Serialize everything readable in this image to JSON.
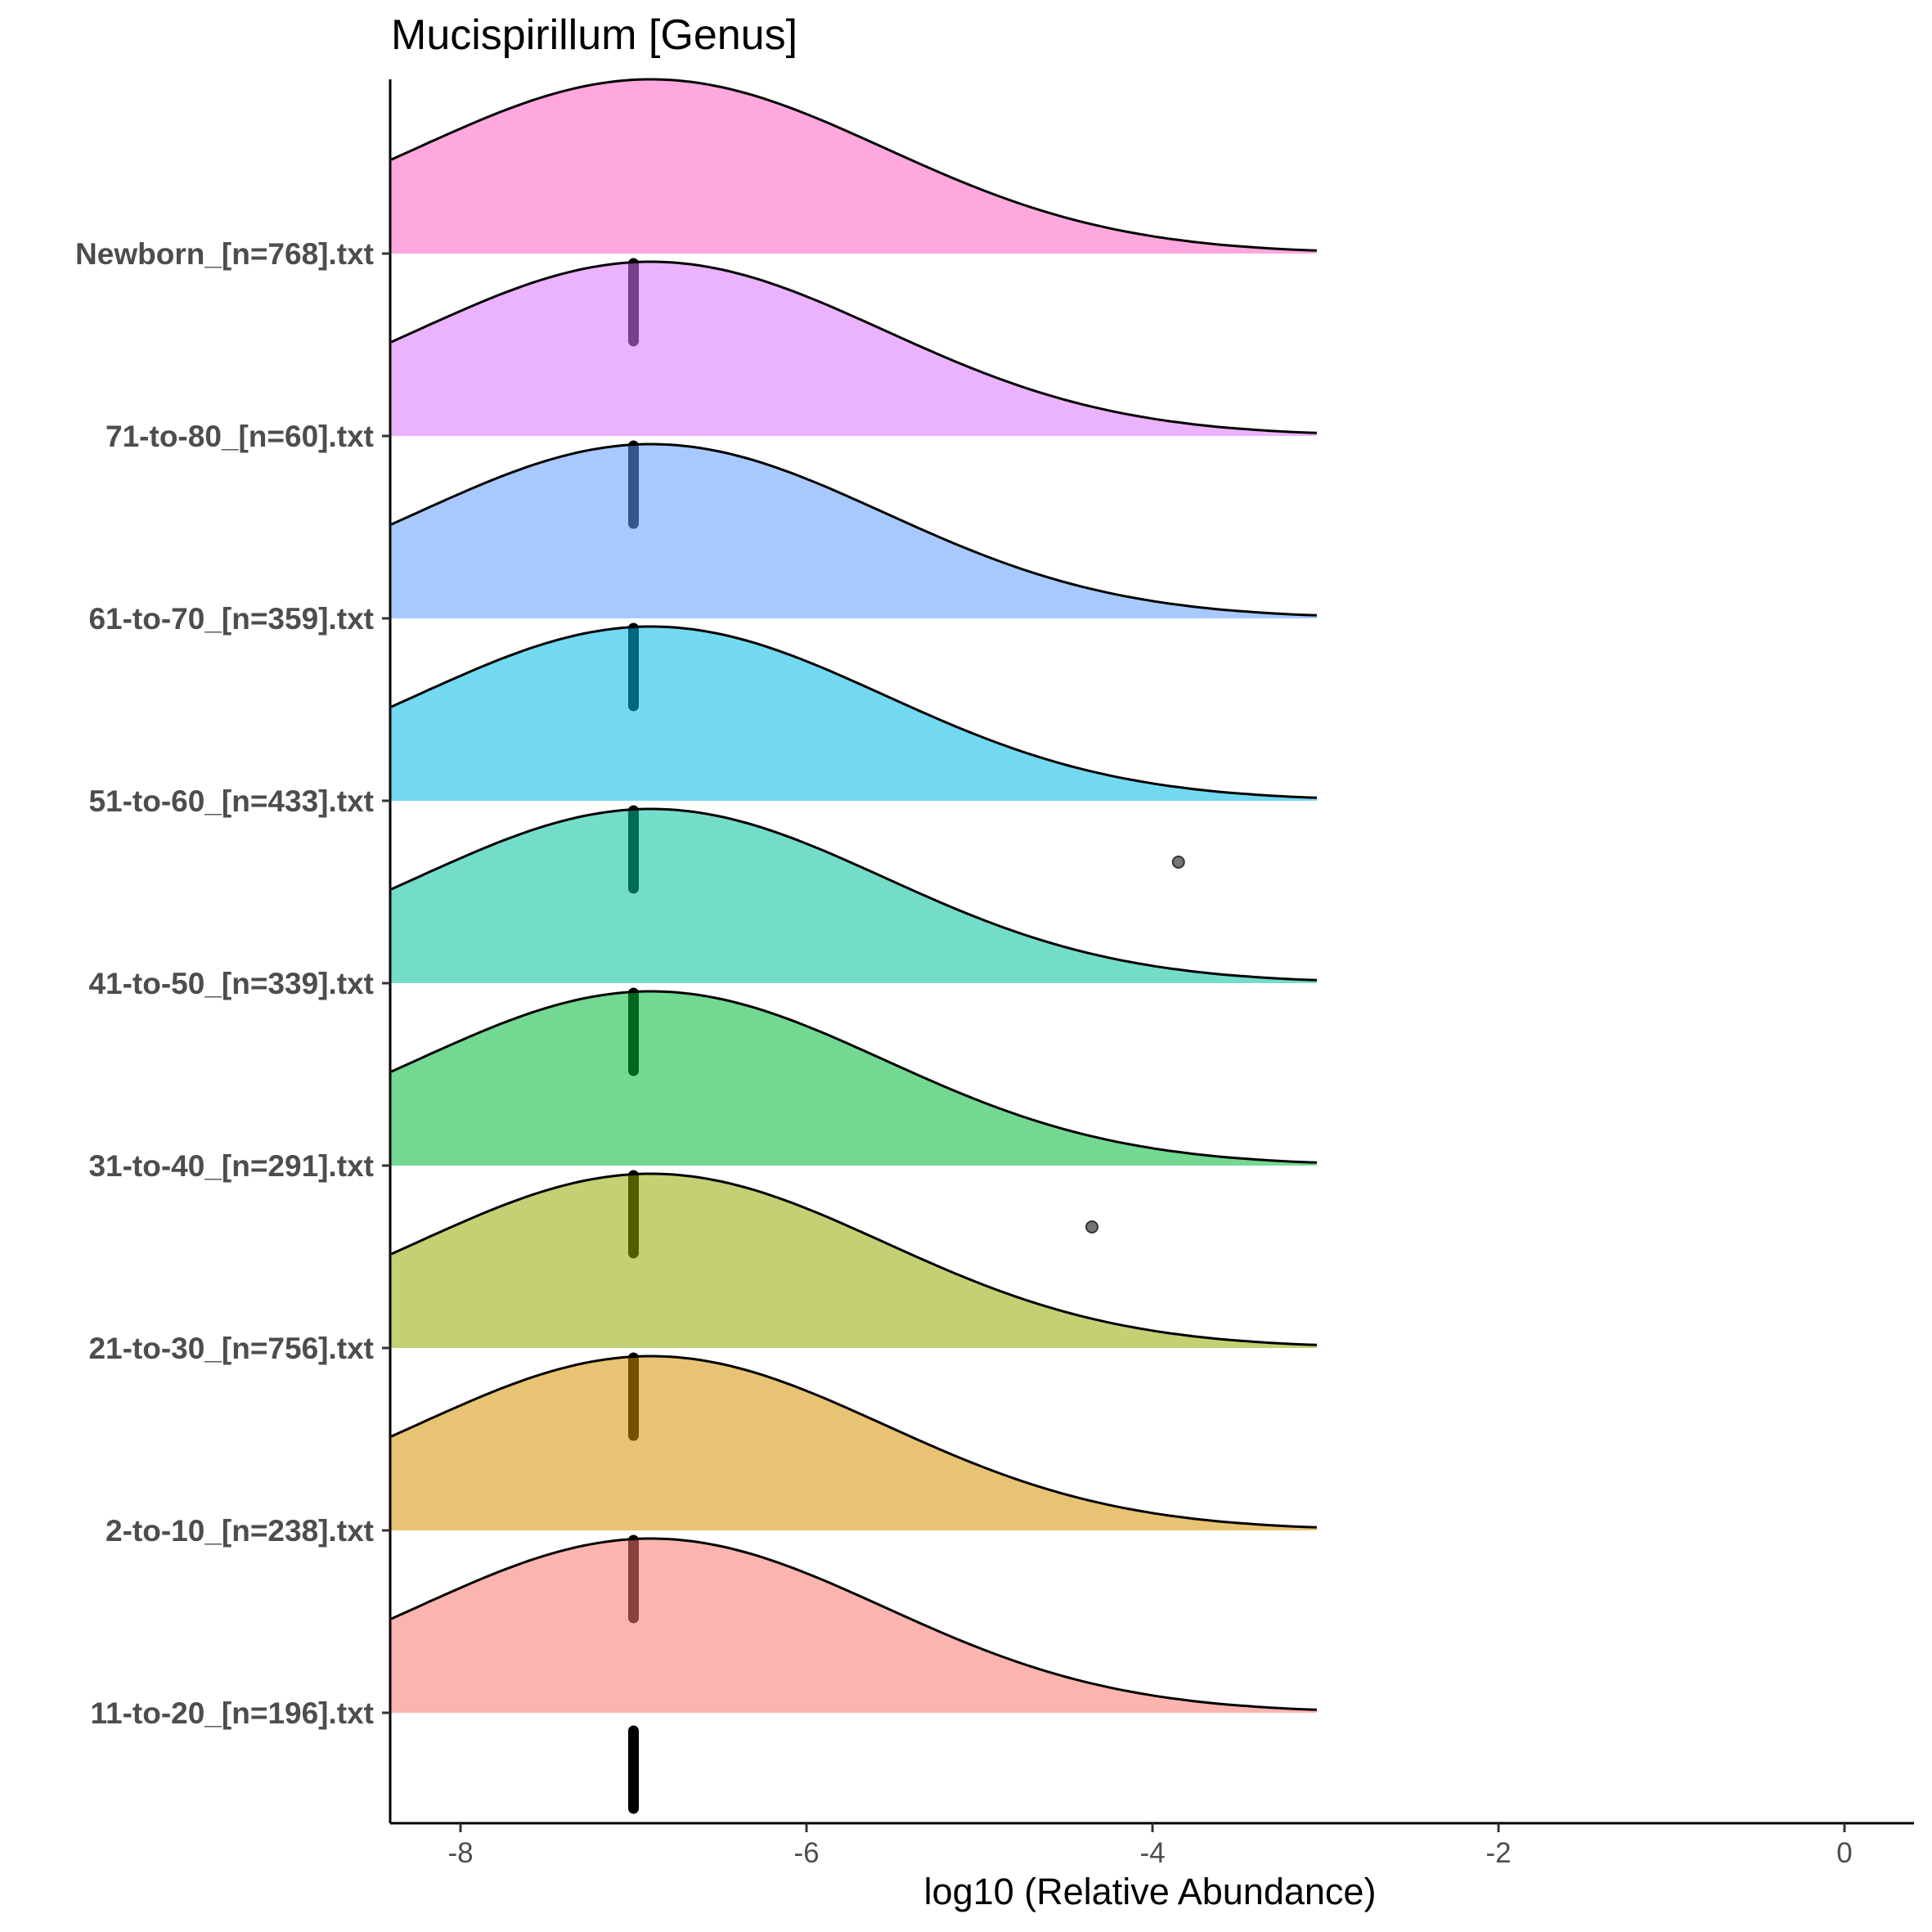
{
  "chart_data": {
    "type": "ridgeline",
    "title": "Mucispirillum [Genus]",
    "xlabel": "log10 (Relative Abundance)",
    "ylabel": "",
    "xlim": [
      -8.4,
      0.4
    ],
    "x_ticks": [
      -8,
      -6,
      -4,
      -2,
      0
    ],
    "x_tick_labels": [
      "-8",
      "-6",
      "-4",
      "-2",
      "0"
    ],
    "density_range": [
      -8.4,
      -3.05
    ],
    "categories": [
      "11-to-20_[n=196].txt",
      "2-to-10_[n=238].txt",
      "21-to-30_[n=756].txt",
      "31-to-40_[n=291].txt",
      "41-to-50_[n=339].txt",
      "51-to-60_[n=433].txt",
      "61-to-70_[n=359].txt",
      "71-to-80_[n=60].txt",
      "Newborn_[n=768].txt"
    ],
    "series": [
      {
        "name": "11-to-20_[n=196].txt",
        "color": "#F8766D",
        "density_peak_x": -6.9,
        "density_sd": 1.35,
        "median": -7.0,
        "outliers": []
      },
      {
        "name": "2-to-10_[n=238].txt",
        "color": "#D39200",
        "density_peak_x": -6.9,
        "density_sd": 1.35,
        "median": -7.0,
        "outliers": []
      },
      {
        "name": "21-to-30_[n=756].txt",
        "color": "#93AA00",
        "density_peak_x": -6.9,
        "density_sd": 1.35,
        "median": -7.0,
        "outliers": [
          -4.35
        ]
      },
      {
        "name": "31-to-40_[n=291].txt",
        "color": "#00BA38",
        "density_peak_x": -6.9,
        "density_sd": 1.35,
        "median": -7.0,
        "outliers": []
      },
      {
        "name": "41-to-50_[n=339].txt",
        "color": "#00C19F",
        "density_peak_x": -6.9,
        "density_sd": 1.35,
        "median": -7.0,
        "outliers": [
          -3.85
        ]
      },
      {
        "name": "51-to-60_[n=433].txt",
        "color": "#00B9E3",
        "density_peak_x": -6.9,
        "density_sd": 1.35,
        "median": -7.0,
        "outliers": []
      },
      {
        "name": "61-to-70_[n=359].txt",
        "color": "#619CFF",
        "density_peak_x": -6.9,
        "density_sd": 1.35,
        "median": -7.0,
        "outliers": []
      },
      {
        "name": "71-to-80_[n=60].txt",
        "color": "#DB72FB",
        "density_peak_x": -6.9,
        "density_sd": 1.35,
        "median": -7.0,
        "outliers": []
      },
      {
        "name": "Newborn_[n=768].txt",
        "color": "#FF61C3",
        "density_peak_x": -6.9,
        "density_sd": 1.35,
        "median": null,
        "outliers": []
      }
    ],
    "grid": false,
    "legend": "none"
  }
}
